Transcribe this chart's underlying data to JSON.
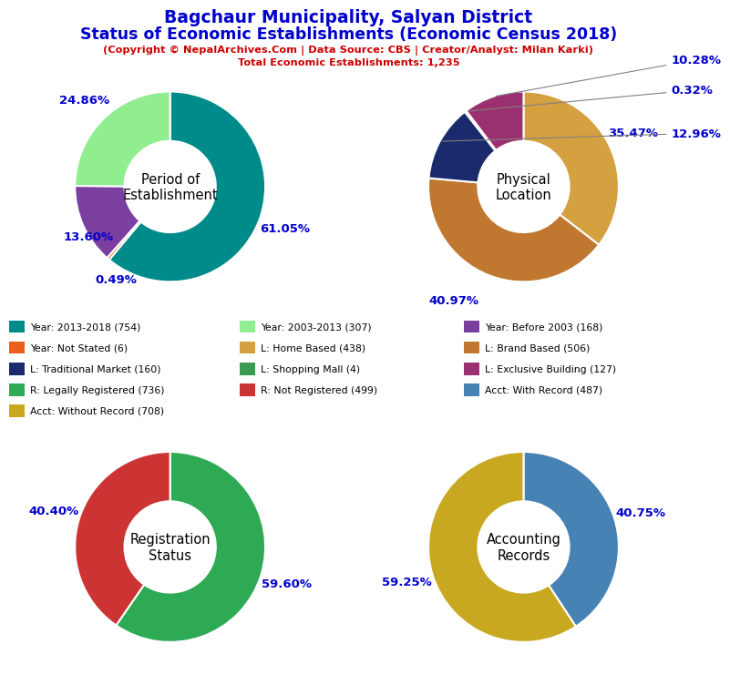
{
  "title_line1": "Bagchaur Municipality, Salyan District",
  "title_line2": "Status of Economic Establishments (Economic Census 2018)",
  "subtitle_line1": "(Copyright © NepalArchives.Com | Data Source: CBS | Creator/Analyst: Milan Karki)",
  "subtitle_line2": "Total Economic Establishments: 1,235",
  "title_color": "#0000CD",
  "subtitle_color": "#CC0000",
  "pie1_title": "Period of\nEstablishment",
  "pie1_values": [
    61.05,
    0.49,
    13.6,
    24.86
  ],
  "pie1_colors": [
    "#008B8B",
    "#E8601C",
    "#7B3FA0",
    "#90EE90"
  ],
  "pie1_labels": [
    "61.05%",
    "0.49%",
    "13.60%",
    "24.86%"
  ],
  "pie2_title": "Physical\nLocation",
  "pie2_values": [
    35.47,
    40.97,
    12.96,
    0.32,
    10.28
  ],
  "pie2_colors": [
    "#D4A040",
    "#C07830",
    "#1A2A6C",
    "#3A9A50",
    "#9B3070"
  ],
  "pie2_labels": [
    "35.47%",
    "40.97%",
    "12.96%",
    "0.32%",
    "10.28%"
  ],
  "pie3_title": "Registration\nStatus",
  "pie3_values": [
    59.6,
    40.4
  ],
  "pie3_colors": [
    "#2EAA55",
    "#CC3333"
  ],
  "pie3_labels": [
    "59.60%",
    "40.40%"
  ],
  "pie4_title": "Accounting\nRecords",
  "pie4_values": [
    40.75,
    59.25
  ],
  "pie4_colors": [
    "#4682B4",
    "#C8A820"
  ],
  "pie4_labels": [
    "40.75%",
    "59.25%"
  ],
  "legend_items": [
    {
      "label": "Year: 2013-2018 (754)",
      "color": "#008B8B"
    },
    {
      "label": "Year: 2003-2013 (307)",
      "color": "#90EE90"
    },
    {
      "label": "Year: Before 2003 (168)",
      "color": "#7B3FA0"
    },
    {
      "label": "Year: Not Stated (6)",
      "color": "#E8601C"
    },
    {
      "label": "L: Home Based (438)",
      "color": "#D4A040"
    },
    {
      "label": "L: Brand Based (506)",
      "color": "#C07830"
    },
    {
      "label": "L: Traditional Market (160)",
      "color": "#1A2A6C"
    },
    {
      "label": "L: Shopping Mall (4)",
      "color": "#3A9A50"
    },
    {
      "label": "L: Exclusive Building (127)",
      "color": "#9B3070"
    },
    {
      "label": "R: Legally Registered (736)",
      "color": "#2EAA55"
    },
    {
      "label": "R: Not Registered (499)",
      "color": "#CC3333"
    },
    {
      "label": "Acct: With Record (487)",
      "color": "#4682B4"
    },
    {
      "label": "Acct: Without Record (708)",
      "color": "#C8A820"
    }
  ],
  "pct_label_color": "#0000CD",
  "pct_fontsize": 9.5,
  "background_color": "#FFFFFF"
}
